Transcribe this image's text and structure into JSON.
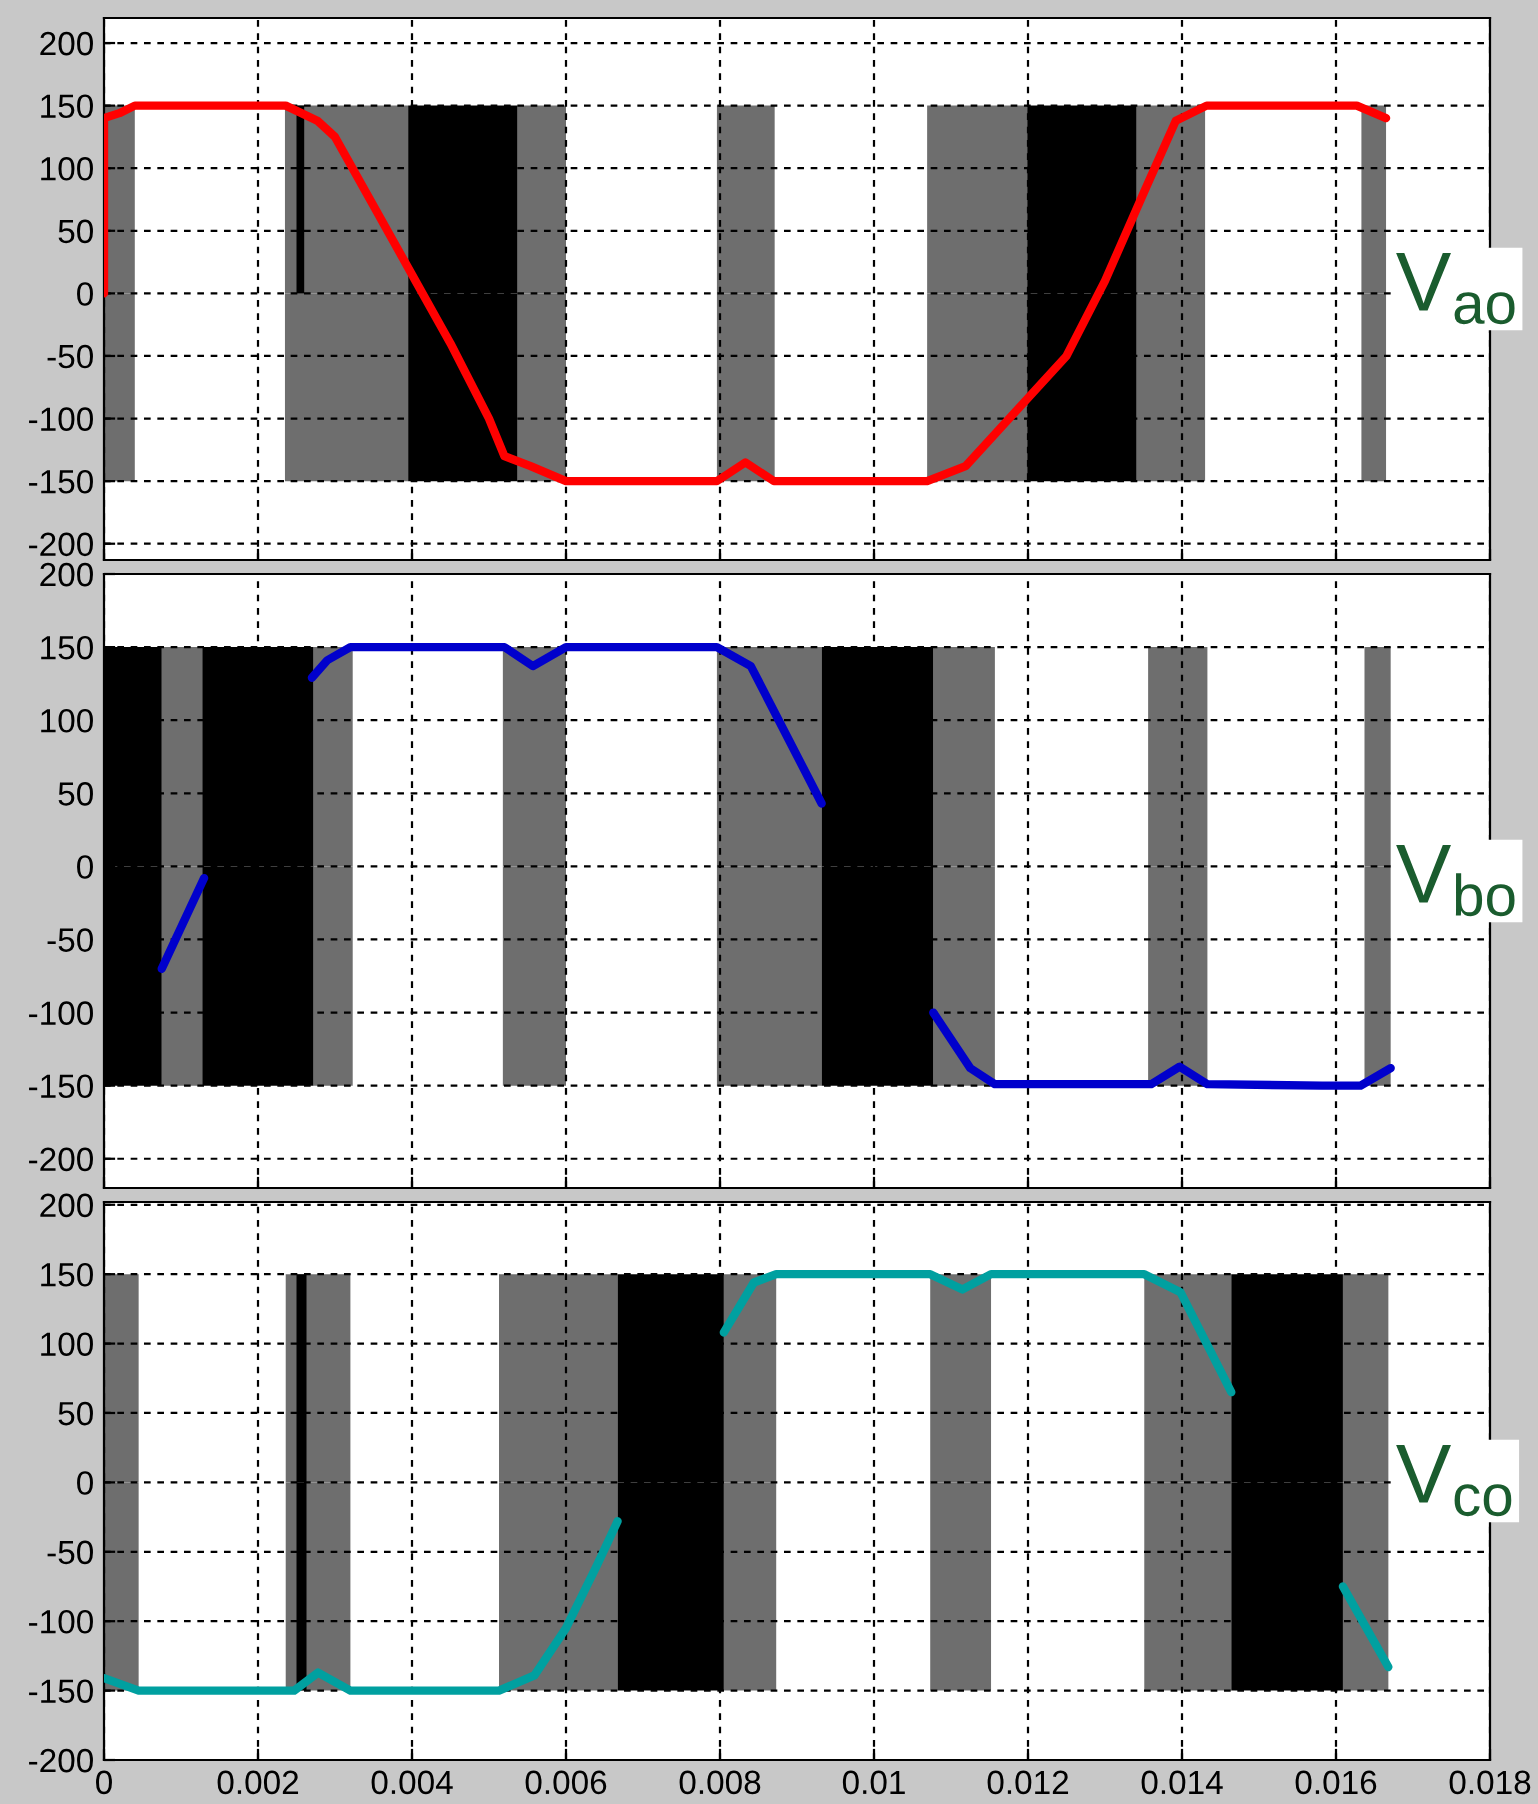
{
  "chart_data": [
    {
      "type": "line",
      "xlim": [
        0,
        0.018
      ],
      "ylim": [
        -213,
        220
      ],
      "xticks": [
        0,
        {
          "value": 0.002,
          "label": null
        },
        {
          "value": 0.004,
          "label": null
        },
        {
          "value": 0.006,
          "label": null
        },
        {
          "value": 0.008,
          "label": null
        },
        {
          "value": 0.01,
          "label": null
        },
        {
          "value": 0.012,
          "label": null
        },
        {
          "value": 0.014,
          "label": null
        },
        {
          "value": 0.016,
          "label": null
        },
        {
          "value": 0.018,
          "label": null
        }
      ],
      "yticks": [
        -200,
        -150,
        -100,
        -50,
        0,
        50,
        100,
        150,
        200
      ],
      "tick_labels": "y",
      "grid": true,
      "annotations": [
        "V$_{ao}$"
      ],
      "series": [
        {
          "type": "area",
          "color": "#6e6e6e",
          "x": [
            0,
            0.0004,
            null,
            0.00235,
            0.00395,
            null,
            0.00537,
            0.006,
            null,
            0.00796,
            0.00871,
            null,
            0.01069,
            0.01199,
            null,
            0.01341,
            0.0143,
            null,
            0.01633,
            0.01665
          ],
          "values": [
            150,
            150,
            null,
            150,
            150,
            null,
            150,
            150,
            null,
            150,
            150,
            null,
            150,
            150,
            null,
            150,
            150,
            null,
            150,
            150
          ]
        },
        {
          "type": "area",
          "color": "#6e6e6e",
          "x": [
            0,
            0.0004,
            null,
            0.00235,
            0.00395,
            null,
            0.00537,
            0.006,
            null,
            0.00796,
            0.00871,
            null,
            0.01069,
            0.01199,
            null,
            0.01341,
            0.0143,
            null,
            0.01633,
            0.01665
          ],
          "values": [
            -150,
            -150,
            null,
            -150,
            -150,
            null,
            -150,
            -150,
            null,
            -150,
            -150,
            null,
            -150,
            -150,
            null,
            -150,
            -150,
            null,
            -150,
            -150
          ]
        },
        {
          "type": "area",
          "color": "#000000",
          "x": [
            0.0025,
            0.0026,
            null,
            0.00395,
            0.00537,
            null,
            0.01199,
            0.01341
          ],
          "values": [
            150,
            150,
            null,
            150,
            150,
            null,
            150,
            150
          ]
        },
        {
          "type": "area",
          "color": "#000000",
          "x": [
            0.00395,
            0.00537,
            null,
            0.01199,
            0.01341
          ],
          "values": [
            -150,
            -150,
            null,
            -150,
            -150
          ]
        },
        {
          "color": "#ff0000",
          "x": [
            0,
            0,
            0.0002,
            0.0004,
            0.00236,
            0.00277,
            0.003,
            0.0035,
            0.004,
            0.0045,
            0.005,
            0.0052,
            0.00554,
            0.006,
            0.00796,
            0.00833,
            0.0087,
            0.01069,
            0.01119,
            0.0125,
            0.013,
            0.0135,
            0.01392,
            0.01432,
            0.01627,
            0.01665
          ],
          "values": [
            0,
            140,
            144,
            150,
            150,
            138,
            125,
            70,
            15,
            -40,
            -100,
            -130,
            -138,
            -150,
            -150,
            -135,
            -150,
            -150,
            -138,
            -50,
            10,
            80,
            138,
            150,
            150,
            140
          ]
        }
      ]
    },
    {
      "type": "line",
      "xlim": [
        0,
        0.018
      ],
      "ylim": [
        -220,
        200
      ],
      "xticks": [
        0,
        {
          "value": 0.002,
          "label": null
        },
        {
          "value": 0.004,
          "label": null
        },
        {
          "value": 0.006,
          "label": null
        },
        {
          "value": 0.008,
          "label": null
        },
        {
          "value": 0.01,
          "label": null
        },
        {
          "value": 0.012,
          "label": null
        },
        {
          "value": 0.014,
          "label": null
        },
        {
          "value": 0.016,
          "label": null
        },
        {
          "value": 0.018,
          "label": null
        }
      ],
      "yticks": [
        -200,
        -150,
        -100,
        -50,
        0,
        50,
        100,
        150,
        200
      ],
      "tick_labels": "y",
      "grid": true,
      "annotations": [
        "V$_{bo}$"
      ],
      "series": [
        {
          "type": "area",
          "color": "#6e6e6e",
          "x": [
            0.00075,
            0.0013,
            null,
            0.00272,
            0.00323,
            null,
            0.00518,
            0.006,
            null,
            0.00796,
            0.00932,
            null,
            0.01077,
            0.01157,
            null,
            0.01356,
            0.01433,
            null,
            0.01637,
            0.01671
          ],
          "values": [
            150,
            150,
            null,
            150,
            150,
            null,
            150,
            150,
            null,
            150,
            150,
            null,
            150,
            150,
            null,
            150,
            150,
            null,
            150,
            150
          ]
        },
        {
          "type": "area",
          "color": "#6e6e6e",
          "x": [
            0.00075,
            0.0013,
            null,
            0.00272,
            0.00323,
            null,
            0.00518,
            0.006,
            null,
            0.00796,
            0.00932,
            null,
            0.01077,
            0.01157,
            null,
            0.01356,
            0.01433,
            null,
            0.01637,
            0.01671
          ],
          "values": [
            -150,
            -150,
            null,
            -150,
            -150,
            null,
            -150,
            -150,
            null,
            -150,
            -150,
            null,
            -150,
            -150,
            null,
            -150,
            -150,
            null,
            -150,
            -150
          ]
        },
        {
          "type": "area",
          "color": "#000000",
          "x": [
            0,
            0.00075,
            null,
            0.00128,
            0.00272,
            null,
            0.00932,
            0.01077
          ],
          "values": [
            150,
            150,
            null,
            150,
            150,
            null,
            150,
            150
          ]
        },
        {
          "type": "area",
          "color": "#000000",
          "x": [
            0,
            0.00075,
            null,
            0.00128,
            0.00272,
            null,
            0.00932,
            0.01077
          ],
          "values": [
            -150,
            -150,
            null,
            -150,
            -150,
            null,
            -150,
            -150
          ]
        },
        {
          "color": "#0000cc",
          "x": [
            0.00075,
            0.0013,
            null,
            0.0027,
            0.0029,
            0.0032,
            0.0052,
            0.00557,
            0.006,
            0.00796,
            0.0084,
            0.00932,
            null,
            0.01077,
            0.01125,
            0.01157,
            0.0136,
            0.01397,
            0.01433,
            0.01582,
            0.01632,
            0.01671
          ],
          "values": [
            -70,
            -8,
            null,
            129,
            141,
            150,
            150,
            137,
            150,
            150,
            137,
            43,
            null,
            -100,
            -138,
            -149,
            -149,
            -137,
            -149,
            -150,
            -150,
            -138
          ]
        }
      ]
    },
    {
      "type": "line",
      "xlim": [
        0,
        0.018
      ],
      "ylim": [
        -200,
        202
      ],
      "xticks": [
        0,
        0.002,
        0.004,
        0.006,
        0.008,
        0.01,
        0.012,
        0.014,
        0.016,
        0.018
      ],
      "yticks": [
        -200,
        -150,
        -100,
        -50,
        0,
        50,
        100,
        150,
        200
      ],
      "grid": true,
      "annotations": [
        "V$_{co}$"
      ],
      "series": [
        {
          "type": "area",
          "color": "#6e6e6e",
          "x": [
            0,
            0.00045,
            null,
            0.00236,
            0.0032,
            null,
            0.00513,
            0.00667,
            null,
            0.00805,
            0.00873,
            null,
            0.01073,
            0.01152,
            null,
            0.01351,
            0.01464,
            null,
            0.01609,
            0.01668
          ],
          "values": [
            150,
            150,
            null,
            150,
            150,
            null,
            150,
            150,
            null,
            150,
            150,
            null,
            150,
            150,
            null,
            150,
            150,
            null,
            150,
            150
          ]
        },
        {
          "type": "area",
          "color": "#6e6e6e",
          "x": [
            0,
            0.00045,
            null,
            0.00236,
            0.0032,
            null,
            0.00513,
            0.00667,
            null,
            0.00805,
            0.00873,
            null,
            0.01073,
            0.01152,
            null,
            0.01351,
            0.01464,
            null,
            0.01609,
            0.01668
          ],
          "values": [
            -150,
            -150,
            null,
            -150,
            -150,
            null,
            -150,
            -150,
            null,
            -150,
            -150,
            null,
            -150,
            -150,
            null,
            -150,
            -150,
            null,
            -150,
            -150
          ]
        },
        {
          "type": "area",
          "color": "#000000",
          "x": [
            0.0025,
            0.00263,
            null,
            0.00667,
            0.00805,
            null,
            0.01464,
            0.01609
          ],
          "values": [
            150,
            150,
            null,
            150,
            150,
            null,
            150,
            150
          ]
        },
        {
          "type": "area",
          "color": "#000000",
          "x": [
            0.0025,
            0.00263,
            null,
            0.00667,
            0.00805,
            null,
            0.01464,
            0.01609
          ],
          "values": [
            -150,
            -150,
            null,
            -150,
            -150,
            null,
            -150,
            -150
          ]
        },
        {
          "color": "#00a0a0",
          "x": [
            0,
            0.00045,
            0.00247,
            0.00278,
            0.0032,
            0.00513,
            0.00559,
            0.006,
            0.0064,
            0.00667,
            null,
            0.00805,
            0.00844,
            0.00873,
            0.01073,
            0.01115,
            0.01152,
            0.01351,
            0.01398,
            0.01464,
            null,
            0.01609,
            0.01668
          ],
          "values": [
            -141,
            -150,
            -150,
            -137,
            -150,
            -150,
            -139,
            -105,
            -60,
            -28,
            null,
            108,
            144,
            150,
            150,
            139,
            150,
            150,
            137,
            65,
            null,
            -75,
            -133
          ]
        }
      ]
    }
  ]
}
